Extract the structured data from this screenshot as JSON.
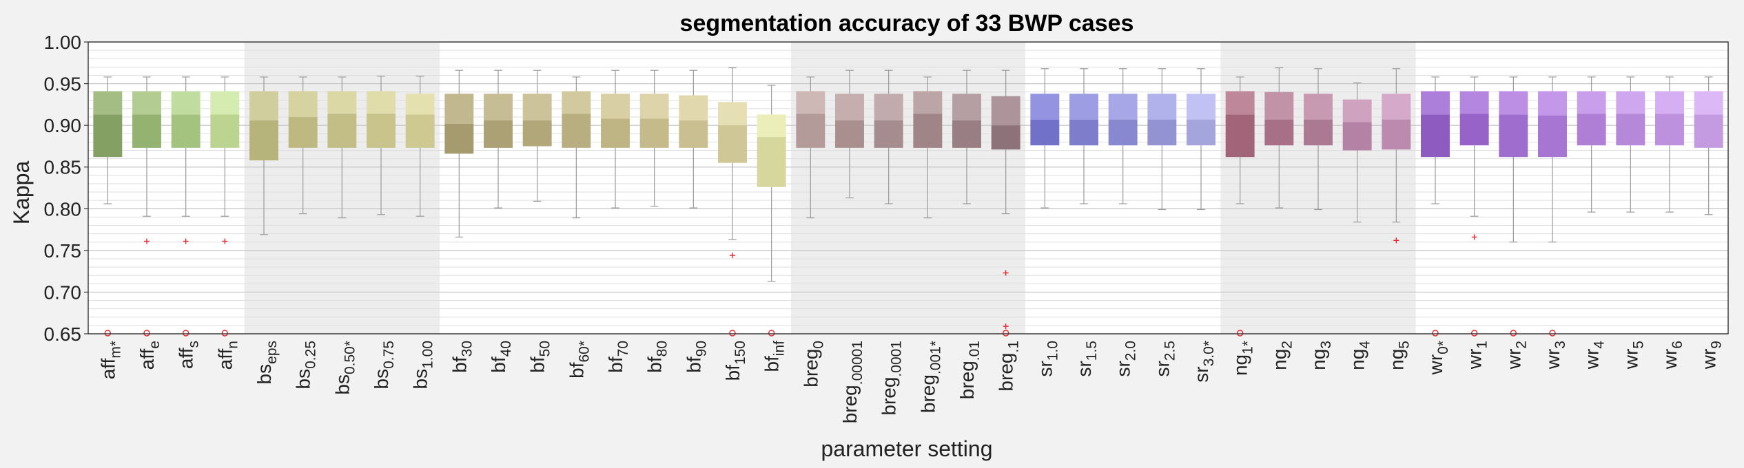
{
  "chart_data": {
    "type": "box",
    "title": "segmentation accuracy of 33 BWP cases",
    "xlabel": "parameter setting",
    "ylabel": "Kappa",
    "ylim": [
      0.65,
      1.0
    ],
    "yticks": [
      "0.65",
      "0.70",
      "0.75",
      "0.80",
      "0.85",
      "0.90",
      "0.95",
      "1.00"
    ],
    "grid": true,
    "groups": [
      {
        "name": "aff",
        "shaded": false,
        "start": 0,
        "end": 3
      },
      {
        "name": "bs",
        "shaded": true,
        "start": 4,
        "end": 8
      },
      {
        "name": "bf",
        "shaded": false,
        "start": 9,
        "end": 17
      },
      {
        "name": "breg",
        "shaded": true,
        "start": 18,
        "end": 23
      },
      {
        "name": "sr",
        "shaded": false,
        "start": 24,
        "end": 28
      },
      {
        "name": "ng",
        "shaded": true,
        "start": 29,
        "end": 33
      },
      {
        "name": "wr",
        "shaded": false,
        "start": 34,
        "end": 41
      }
    ],
    "categories": [
      {
        "base": "aff",
        "sub": "m*",
        "color": "#8fae6a",
        "q1": 0.862,
        "median": 0.913,
        "q3": 0.941,
        "whisker_low": 0.806,
        "whisker_high": 0.958,
        "outliers": [],
        "below_axis": true
      },
      {
        "base": "aff",
        "sub": "e",
        "color": "#a1c17a",
        "q1": 0.873,
        "median": 0.913,
        "q3": 0.941,
        "whisker_low": 0.791,
        "whisker_high": 0.958,
        "outliers": [
          0.761
        ],
        "below_axis": true
      },
      {
        "base": "aff",
        "sub": "s",
        "color": "#b2d48a",
        "q1": 0.873,
        "median": 0.913,
        "q3": 0.941,
        "whisker_low": 0.791,
        "whisker_high": 0.958,
        "outliers": [
          0.761
        ],
        "below_axis": true
      },
      {
        "base": "aff",
        "sub": "n",
        "color": "#cbe89e",
        "q1": 0.873,
        "median": 0.913,
        "q3": 0.941,
        "whisker_low": 0.791,
        "whisker_high": 0.958,
        "outliers": [
          0.761
        ],
        "below_axis": true
      },
      {
        "base": "bs",
        "sub": "eps",
        "color": "#c6c386",
        "q1": 0.858,
        "median": 0.906,
        "q3": 0.941,
        "whisker_low": 0.769,
        "whisker_high": 0.958,
        "outliers": [],
        "below_axis": false
      },
      {
        "base": "bs",
        "sub": "0.25",
        "color": "#cdc98c",
        "q1": 0.873,
        "median": 0.91,
        "q3": 0.941,
        "whisker_low": 0.794,
        "whisker_high": 0.958,
        "outliers": [],
        "below_axis": false
      },
      {
        "base": "bs",
        "sub": "0.50*",
        "color": "#d3cf92",
        "q1": 0.873,
        "median": 0.914,
        "q3": 0.941,
        "whisker_low": 0.789,
        "whisker_high": 0.958,
        "outliers": [],
        "below_axis": false
      },
      {
        "base": "bs",
        "sub": "0.75",
        "color": "#d9d598",
        "q1": 0.873,
        "median": 0.914,
        "q3": 0.941,
        "whisker_low": 0.793,
        "whisker_high": 0.959,
        "outliers": [],
        "below_axis": false
      },
      {
        "base": "bs",
        "sub": "1.00",
        "color": "#dfdb9e",
        "q1": 0.873,
        "median": 0.913,
        "q3": 0.938,
        "whisker_low": 0.791,
        "whisker_high": 0.959,
        "outliers": [],
        "below_axis": false
      },
      {
        "base": "bf",
        "sub": "30",
        "color": "#b3a878",
        "q1": 0.866,
        "median": 0.902,
        "q3": 0.938,
        "whisker_low": 0.766,
        "whisker_high": 0.966,
        "outliers": [],
        "below_axis": false
      },
      {
        "base": "bf",
        "sub": "40",
        "color": "#baaf7e",
        "q1": 0.873,
        "median": 0.906,
        "q3": 0.938,
        "whisker_low": 0.801,
        "whisker_high": 0.966,
        "outliers": [],
        "below_axis": false
      },
      {
        "base": "bf",
        "sub": "50",
        "color": "#c1b684",
        "q1": 0.875,
        "median": 0.906,
        "q3": 0.938,
        "whisker_low": 0.809,
        "whisker_high": 0.966,
        "outliers": [],
        "below_axis": false
      },
      {
        "base": "bf",
        "sub": "60*",
        "color": "#c8bd8a",
        "q1": 0.873,
        "median": 0.914,
        "q3": 0.941,
        "whisker_low": 0.789,
        "whisker_high": 0.958,
        "outliers": [],
        "below_axis": false
      },
      {
        "base": "bf",
        "sub": "70",
        "color": "#cfc490",
        "q1": 0.873,
        "median": 0.908,
        "q3": 0.938,
        "whisker_low": 0.801,
        "whisker_high": 0.966,
        "outliers": [],
        "below_axis": false
      },
      {
        "base": "bf",
        "sub": "80",
        "color": "#d5ca96",
        "q1": 0.873,
        "median": 0.908,
        "q3": 0.938,
        "whisker_low": 0.803,
        "whisker_high": 0.966,
        "outliers": [],
        "below_axis": false
      },
      {
        "base": "bf",
        "sub": "90",
        "color": "#dbd09c",
        "q1": 0.873,
        "median": 0.906,
        "q3": 0.936,
        "whisker_low": 0.801,
        "whisker_high": 0.966,
        "outliers": [],
        "below_axis": false
      },
      {
        "base": "bf",
        "sub": "150",
        "color": "#e2d8a4",
        "q1": 0.855,
        "median": 0.9,
        "q3": 0.928,
        "whisker_low": 0.763,
        "whisker_high": 0.969,
        "outliers": [
          0.744
        ],
        "below_axis": true
      },
      {
        "base": "bf",
        "sub": "inf",
        "color": "#e8eaaa",
        "q1": 0.826,
        "median": 0.886,
        "q3": 0.913,
        "whisker_low": 0.713,
        "whisker_high": 0.948,
        "outliers": [],
        "below_axis": true
      },
      {
        "base": "breg",
        "sub": "0",
        "color": "#c3a9a6",
        "q1": 0.873,
        "median": 0.914,
        "q3": 0.941,
        "whisker_low": 0.789,
        "whisker_high": 0.958,
        "outliers": [],
        "below_axis": false
      },
      {
        "base": "breg",
        "sub": ".00001",
        "color": "#b89c9b",
        "q1": 0.873,
        "median": 0.906,
        "q3": 0.938,
        "whisker_low": 0.813,
        "whisker_high": 0.966,
        "outliers": [],
        "below_axis": false
      },
      {
        "base": "breg",
        "sub": ".0001",
        "color": "#b3989a",
        "q1": 0.873,
        "median": 0.906,
        "q3": 0.938,
        "whisker_low": 0.806,
        "whisker_high": 0.966,
        "outliers": [],
        "below_axis": false
      },
      {
        "base": "breg",
        "sub": ".001*",
        "color": "#ad9193",
        "q1": 0.873,
        "median": 0.914,
        "q3": 0.941,
        "whisker_low": 0.789,
        "whisker_high": 0.958,
        "outliers": [],
        "below_axis": false
      },
      {
        "base": "breg",
        "sub": ".01",
        "color": "#a68a8e",
        "q1": 0.873,
        "median": 0.906,
        "q3": 0.938,
        "whisker_low": 0.806,
        "whisker_high": 0.966,
        "outliers": [],
        "below_axis": false
      },
      {
        "base": "breg",
        "sub": ".1",
        "color": "#9a7c84",
        "q1": 0.871,
        "median": 0.9,
        "q3": 0.935,
        "whisker_low": 0.794,
        "whisker_high": 0.966,
        "outliers": [
          0.723,
          0.659
        ],
        "below_axis": true
      },
      {
        "base": "sr",
        "sub": "1.0",
        "color": "#7b7bdb",
        "q1": 0.876,
        "median": 0.907,
        "q3": 0.938,
        "whisker_low": 0.801,
        "whisker_high": 0.968,
        "outliers": [],
        "below_axis": false
      },
      {
        "base": "sr",
        "sub": "1.5",
        "color": "#8888de",
        "q1": 0.876,
        "median": 0.907,
        "q3": 0.938,
        "whisker_low": 0.806,
        "whisker_high": 0.968,
        "outliers": [],
        "below_axis": false
      },
      {
        "base": "sr",
        "sub": "2.0",
        "color": "#9494e2",
        "q1": 0.876,
        "median": 0.907,
        "q3": 0.938,
        "whisker_low": 0.806,
        "whisker_high": 0.968,
        "outliers": [],
        "below_axis": false
      },
      {
        "base": "sr",
        "sub": "2.5",
        "color": "#a0a0e6",
        "q1": 0.876,
        "median": 0.907,
        "q3": 0.938,
        "whisker_low": 0.799,
        "whisker_high": 0.968,
        "outliers": [],
        "below_axis": false
      },
      {
        "base": "sr",
        "sub": "3.0*",
        "color": "#b3b3f0",
        "q1": 0.876,
        "median": 0.907,
        "q3": 0.938,
        "whisker_low": 0.799,
        "whisker_high": 0.968,
        "outliers": [],
        "below_axis": false
      },
      {
        "base": "ng",
        "sub": "1*",
        "color": "#b06d84",
        "q1": 0.862,
        "median": 0.913,
        "q3": 0.941,
        "whisker_low": 0.806,
        "whisker_high": 0.958,
        "outliers": [],
        "below_axis": true
      },
      {
        "base": "ng",
        "sub": "2",
        "color": "#b57a93",
        "q1": 0.876,
        "median": 0.907,
        "q3": 0.94,
        "whisker_low": 0.801,
        "whisker_high": 0.969,
        "outliers": [],
        "below_axis": false
      },
      {
        "base": "ng",
        "sub": "3",
        "color": "#bb84a0",
        "q1": 0.876,
        "median": 0.907,
        "q3": 0.938,
        "whisker_low": 0.799,
        "whisker_high": 0.968,
        "outliers": [],
        "below_axis": false
      },
      {
        "base": "ng",
        "sub": "4",
        "color": "#c48db2",
        "q1": 0.87,
        "median": 0.904,
        "q3": 0.931,
        "whisker_low": 0.784,
        "whisker_high": 0.951,
        "outliers": [],
        "below_axis": false
      },
      {
        "base": "ng",
        "sub": "5",
        "color": "#cb96bd",
        "q1": 0.871,
        "median": 0.907,
        "q3": 0.938,
        "whisker_low": 0.784,
        "whisker_high": 0.968,
        "outliers": [
          0.762
        ],
        "below_axis": false
      },
      {
        "base": "wr",
        "sub": "0*",
        "color": "#9a64d2",
        "q1": 0.862,
        "median": 0.913,
        "q3": 0.941,
        "whisker_low": 0.806,
        "whisker_high": 0.958,
        "outliers": [],
        "below_axis": true
      },
      {
        "base": "wr",
        "sub": "1",
        "color": "#a46cd9",
        "q1": 0.876,
        "median": 0.914,
        "q3": 0.941,
        "whisker_low": 0.791,
        "whisker_high": 0.958,
        "outliers": [
          0.766
        ],
        "below_axis": true
      },
      {
        "base": "wr",
        "sub": "2",
        "color": "#ad76df",
        "q1": 0.862,
        "median": 0.913,
        "q3": 0.941,
        "whisker_low": 0.76,
        "whisker_high": 0.958,
        "outliers": [],
        "below_axis": true
      },
      {
        "base": "wr",
        "sub": "3",
        "color": "#b680e4",
        "q1": 0.862,
        "median": 0.912,
        "q3": 0.941,
        "whisker_low": 0.76,
        "whisker_high": 0.958,
        "outliers": [],
        "below_axis": true
      },
      {
        "base": "wr",
        "sub": "4",
        "color": "#bd8ae8",
        "q1": 0.876,
        "median": 0.914,
        "q3": 0.941,
        "whisker_low": 0.796,
        "whisker_high": 0.958,
        "outliers": [],
        "below_axis": false
      },
      {
        "base": "wr",
        "sub": "5",
        "color": "#c594ec",
        "q1": 0.876,
        "median": 0.914,
        "q3": 0.941,
        "whisker_low": 0.796,
        "whisker_high": 0.958,
        "outliers": [],
        "below_axis": false
      },
      {
        "base": "wr",
        "sub": "6",
        "color": "#cd9ef0",
        "q1": 0.876,
        "median": 0.914,
        "q3": 0.941,
        "whisker_low": 0.796,
        "whisker_high": 0.958,
        "outliers": [],
        "below_axis": false
      },
      {
        "base": "wr",
        "sub": "9",
        "color": "#d5a8f4",
        "q1": 0.873,
        "median": 0.913,
        "q3": 0.941,
        "whisker_low": 0.793,
        "whisker_high": 0.958,
        "outliers": [],
        "below_axis": false
      }
    ]
  }
}
